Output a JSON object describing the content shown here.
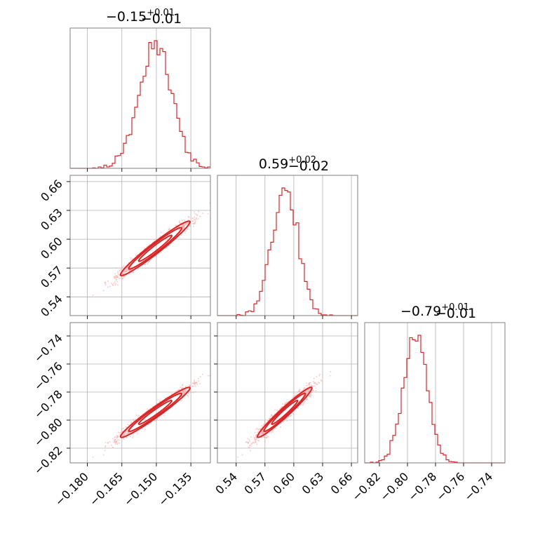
{
  "chart_data": {
    "type": "scatter",
    "kind": "corner-plot",
    "color": "#d62728",
    "grid": true,
    "parameters": [
      {
        "title": "−0.15",
        "err_plus": "+0.01",
        "err_minus": "−0.01",
        "median": -0.1505,
        "sigma": 0.0072,
        "range": [
          -0.1875,
          -0.1265
        ],
        "ticks": [
          -0.18,
          -0.165,
          -0.15,
          -0.135
        ],
        "tick_labels": [
          "−0.180",
          "−0.165",
          "−0.150",
          "−0.135"
        ]
      },
      {
        "title": "0.59",
        "err_plus": "+0.02",
        "err_minus": "−0.02",
        "median": 0.5905,
        "sigma": 0.0135,
        "range": [
          0.5205,
          0.6665
        ],
        "ticks": [
          0.54,
          0.57,
          0.6,
          0.63,
          0.66
        ],
        "tick_labels": [
          "0.54",
          "0.57",
          "0.60",
          "0.63",
          "0.66"
        ]
      },
      {
        "title": "−0.79",
        "err_plus": "+0.01",
        "err_minus": "−0.01",
        "median": -0.7945,
        "sigma": 0.0085,
        "range": [
          -0.8305,
          -0.7305
        ],
        "ticks": [
          -0.82,
          -0.8,
          -0.78,
          -0.76,
          -0.74
        ],
        "tick_labels": [
          "−0.82",
          "−0.80",
          "−0.78",
          "−0.76",
          "−0.74"
        ]
      }
    ],
    "correlation": 0.97
  }
}
